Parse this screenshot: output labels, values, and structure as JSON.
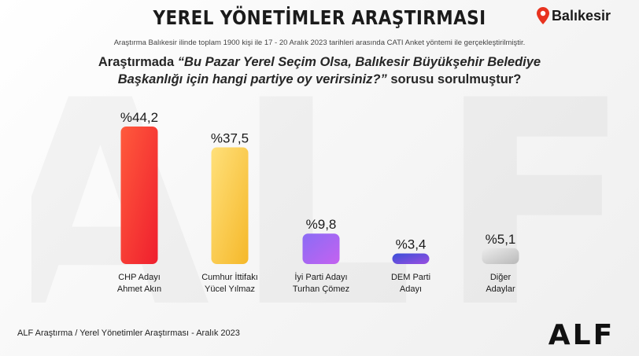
{
  "header": {
    "title": "YEREL YÖNETİMLER ARAŞTIRMASI",
    "location": "Balıkesir",
    "subtitle": "Araştırma Balıkesir ilinde toplam 1900 kişi ile 17 - 20  Aralık 2023 tarihleri arasında CATI Anket yöntemi ile gerçekleştirilmiştir.",
    "question_line1_plain": "Araştırmada ",
    "question_line1_italic": "“Bu Pazar Yerel Seçim Olsa, Balıkesir Büyükşehir Belediye",
    "question_line2_italic": "Başkanlığı için hangi partiye oy verirsiniz?”",
    "question_line2_plain": " sorusu  sorulmuştur?"
  },
  "chart_data": {
    "type": "bar",
    "categories": [
      [
        "CHP Adayı",
        "Ahmet Akın"
      ],
      [
        "Cumhur İttifakı",
        "Yücel Yılmaz"
      ],
      [
        "İyi Parti Adayı",
        "Turhan Çömez"
      ],
      [
        "DEM Parti",
        "Adayı"
      ],
      [
        "Diğer",
        "Adaylar"
      ]
    ],
    "values": [
      44.2,
      37.5,
      9.8,
      3.4,
      5.1
    ],
    "value_labels": [
      "%44,2",
      "%37,5",
      "%9,8",
      "%3,4",
      "%5,1"
    ],
    "ylim": [
      0,
      44.2
    ],
    "grid": false,
    "colors": [
      [
        "#ff5a3c",
        "#ef1f2e"
      ],
      [
        "#ffe07a",
        "#f5b82a"
      ],
      [
        "#8a6cf5",
        "#c462f0"
      ],
      [
        "#3a4fd8",
        "#9b4fe0"
      ],
      [
        "#ececec",
        "#b9b9b9"
      ]
    ]
  },
  "footer": {
    "source": "ALF Araştırma / Yerel Yönetimler Araştırması - Aralık 2023",
    "brand": "ALF"
  },
  "watermark": "ALF",
  "icons": {
    "location": "location-pin-icon"
  },
  "accent_color": "#e8331f"
}
